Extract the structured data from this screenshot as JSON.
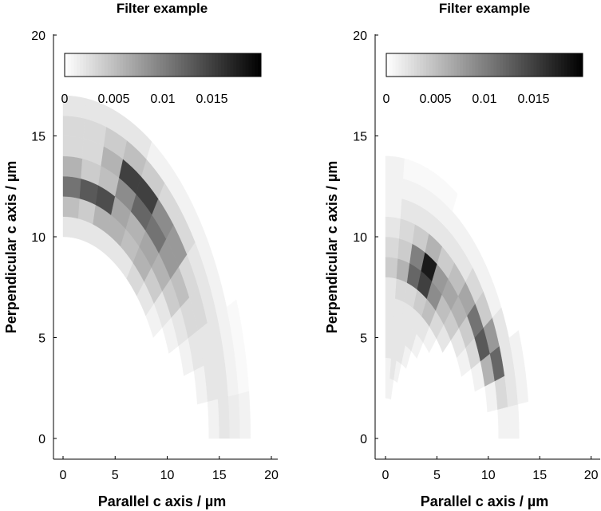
{
  "chart_data": [
    {
      "type": "heatmap",
      "title": "Filter example",
      "xlabel": "Parallel c axis / µm",
      "ylabel": "Perpendicular c axis / µm",
      "xlim": [
        -0.9,
        20.7
      ],
      "ylim": [
        -1,
        20
      ],
      "xticks": [
        "0",
        "5",
        "10",
        "15",
        "20"
      ],
      "yticks": [
        "0",
        "5",
        "10",
        "15",
        "20"
      ],
      "grid": false,
      "colormap": "gray reversed (white = 0, black = max)",
      "colorbar": {
        "placement": "top-left inside",
        "range": [
          0,
          0.02
        ],
        "ticks": [
          "0",
          "0.005",
          "0.01",
          "0.015"
        ]
      },
      "grid_coords": "polar",
      "angle_bin_centers_deg": [
        3.75,
        11.25,
        18.75,
        26.25,
        33.75,
        41.25,
        48.75,
        56.25,
        63.75,
        71.25,
        78.75,
        86.25
      ],
      "radius_bin_centers_um": [
        2.5,
        3.5,
        4.5,
        5.5,
        6.5,
        7.5,
        8.5,
        9.5,
        10.5,
        11.5,
        12.5,
        13.5,
        14.5,
        15.5,
        16.5,
        17.5
      ],
      "values": [
        [
          0,
          0,
          0,
          0,
          0,
          0,
          0,
          0,
          0,
          0,
          0,
          0,
          0.001,
          0.002,
          0.0015,
          0.001
        ],
        [
          0,
          0,
          0,
          0,
          0,
          0,
          0,
          0,
          0,
          0,
          0,
          0.001,
          0.002,
          0.002,
          0.001,
          0.0005
        ],
        [
          0,
          0,
          0,
          0,
          0,
          0,
          0,
          0,
          0,
          0,
          0.001,
          0.002,
          0.002,
          0.002,
          0.001,
          0.0005
        ],
        [
          0,
          0,
          0,
          0,
          0,
          0,
          0,
          0,
          0,
          0.001,
          0.002,
          0.003,
          0.003,
          0.002,
          0.001,
          0
        ],
        [
          0,
          0,
          0,
          0,
          0,
          0,
          0,
          0,
          0.001,
          0.002,
          0.004,
          0.005,
          0.003,
          0.002,
          0.001,
          0
        ],
        [
          0,
          0,
          0,
          0,
          0,
          0,
          0,
          0,
          0.002,
          0.004,
          0.006,
          0.008,
          0.008,
          0.003,
          0.001,
          0
        ],
        [
          0,
          0,
          0,
          0,
          0,
          0,
          0,
          0,
          0.003,
          0.006,
          0.007,
          0.011,
          0.009,
          0.003,
          0.001,
          0
        ],
        [
          0,
          0,
          0,
          0,
          0,
          0,
          0,
          0,
          0.002,
          0.005,
          0.006,
          0.012,
          0.015,
          0.004,
          0.001,
          0
        ],
        [
          0,
          0,
          0,
          0,
          0,
          0,
          0,
          0,
          0.002,
          0.006,
          0.007,
          0.009,
          0.015,
          0.005,
          0.002,
          0
        ],
        [
          0,
          0,
          0,
          0,
          0,
          0,
          0,
          0,
          0.002,
          0.006,
          0.014,
          0.005,
          0.006,
          0.004,
          0.002,
          0
        ],
        [
          0,
          0,
          0,
          0,
          0,
          0,
          0,
          0,
          0.002,
          0.004,
          0.013,
          0.004,
          0.003,
          0.003,
          0.002,
          0
        ],
        [
          0,
          0,
          0,
          0,
          0,
          0,
          0,
          0,
          0.002,
          0.005,
          0.011,
          0.006,
          0.003,
          0.003,
          0.002,
          0
        ]
      ]
    },
    {
      "type": "heatmap",
      "title": "Filter example",
      "xlabel": "Parallel c axis / µm",
      "ylabel": "Perpendicular c axis / µm",
      "xlim": [
        -1,
        20.9
      ],
      "ylim": [
        -1,
        20
      ],
      "xticks": [
        "0",
        "5",
        "10",
        "15",
        "20"
      ],
      "yticks": [
        "0",
        "5",
        "10",
        "15",
        "20"
      ],
      "grid": false,
      "colormap": "gray reversed (white = 0, black = max)",
      "colorbar": {
        "placement": "top-left inside",
        "range": [
          0,
          0.02
        ],
        "ticks": [
          "0",
          "0.005",
          "0.01",
          "0.015"
        ]
      },
      "grid_coords": "polar",
      "angle_bin_centers_deg": [
        3.75,
        11.25,
        18.75,
        26.25,
        33.75,
        41.25,
        48.75,
        56.25,
        63.75,
        71.25,
        78.75,
        86.25
      ],
      "radius_bin_centers_um": [
        2.5,
        3.5,
        4.5,
        5.5,
        6.5,
        7.5,
        8.5,
        9.5,
        10.5,
        11.5,
        12.5,
        13.5,
        14.5,
        15.5,
        16.5,
        17.5
      ],
      "values": [
        [
          0,
          0,
          0,
          0,
          0,
          0,
          0,
          0,
          0,
          0.001,
          0.001,
          0,
          0,
          0,
          0,
          0
        ],
        [
          0,
          0,
          0,
          0,
          0,
          0,
          0,
          0,
          0.001,
          0.003,
          0.002,
          0.001,
          0,
          0,
          0,
          0
        ],
        [
          0,
          0,
          0,
          0,
          0,
          0,
          0,
          0.001,
          0.006,
          0.012,
          0.002,
          0.001,
          0,
          0,
          0,
          0
        ],
        [
          0,
          0,
          0,
          0,
          0,
          0,
          0.001,
          0.003,
          0.013,
          0.008,
          0.002,
          0,
          0,
          0,
          0,
          0
        ],
        [
          0,
          0,
          0,
          0,
          0,
          0,
          0.002,
          0.004,
          0.011,
          0.004,
          0.001,
          0,
          0,
          0,
          0,
          0
        ],
        [
          0,
          0,
          0,
          0,
          0,
          0.002,
          0.004,
          0.006,
          0.007,
          0.003,
          0.001,
          0,
          0,
          0,
          0,
          0
        ],
        [
          0,
          0,
          0,
          0,
          0.001,
          0.003,
          0.005,
          0.007,
          0.005,
          0.002,
          0.001,
          0,
          0,
          0,
          0,
          0
        ],
        [
          0,
          0,
          0,
          0.001,
          0.002,
          0.005,
          0.009,
          0.008,
          0.004,
          0.002,
          0.001,
          0,
          0,
          0,
          0,
          0
        ],
        [
          0,
          0,
          0.001,
          0.002,
          0.002,
          0.004,
          0.015,
          0.018,
          0.006,
          0.002,
          0.001,
          0.0005,
          0,
          0,
          0,
          0
        ],
        [
          0,
          0.001,
          0.002,
          0.002,
          0.002,
          0.003,
          0.012,
          0.01,
          0.004,
          0.002,
          0.001,
          0.0005,
          0,
          0,
          0,
          0
        ],
        [
          0.001,
          0.002,
          0.002,
          0.002,
          0.002,
          0.003,
          0.006,
          0.004,
          0.003,
          0.002,
          0.001,
          0.0005,
          0,
          0,
          0,
          0
        ],
        [
          0.001,
          0.001,
          0.002,
          0.002,
          0.002,
          0.002,
          0.004,
          0.003,
          0.002,
          0.001,
          0.001,
          0.001,
          0,
          0,
          0,
          0
        ]
      ]
    }
  ]
}
